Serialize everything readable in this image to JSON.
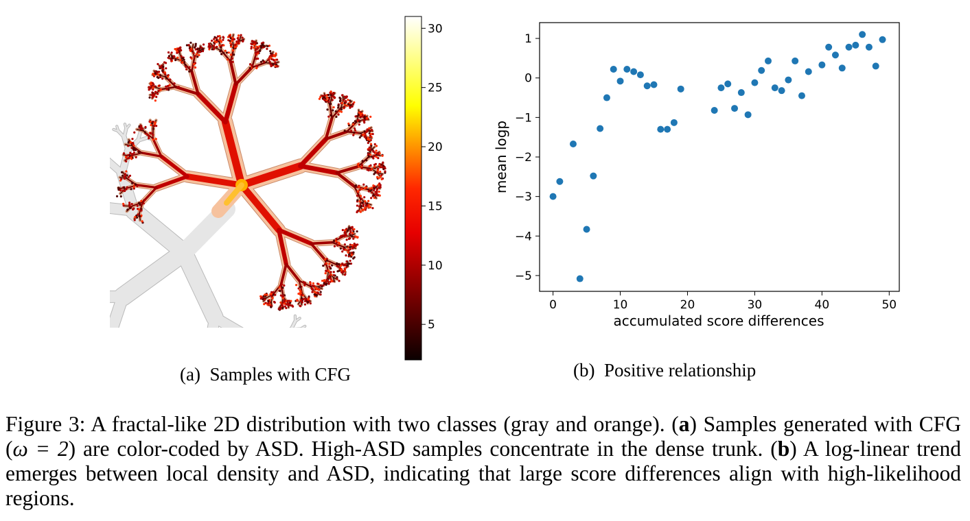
{
  "panel_a": {
    "subcaption_tag": "(a)",
    "subcaption_text": "Samples with CFG",
    "colorbar": {
      "min": 2,
      "max": 31,
      "ticks": [
        5,
        10,
        15,
        20,
        25,
        30
      ],
      "colormap": "hot"
    }
  },
  "panel_b": {
    "subcaption_tag": "(b)",
    "subcaption_text": "Positive relationship"
  },
  "caption": {
    "label": "Figure 3:",
    "text1": " A fractal-like 2D distribution with two classes (gray and orange). (",
    "bold_a": "a",
    "text2": ") Samples generated with CFG (",
    "omega": "ω = 2",
    "text3": ") are color-coded by ASD. High-ASD samples concentrate in the dense trunk. (",
    "bold_b": "b",
    "text4": ") A log-linear trend emerges between local density and ASD, indicating that large score differences align with high-likelihood regions."
  },
  "chart_data": {
    "type": "scatter",
    "xlabel": "accumulated score differences",
    "ylabel": "mean logp",
    "xlim": [
      -2,
      51.5
    ],
    "ylim": [
      -5.4,
      1.4
    ],
    "xticks": [
      0,
      10,
      20,
      30,
      40,
      50
    ],
    "yticks": [
      -5,
      -4,
      -3,
      -2,
      -1,
      0,
      1
    ],
    "marker_color": "#1f77b4",
    "x": [
      0,
      1,
      3,
      4,
      5,
      6,
      7,
      8,
      9,
      10,
      11,
      12,
      13,
      14,
      15,
      16,
      17,
      18,
      19,
      24,
      25,
      26,
      27,
      28,
      29,
      30,
      31,
      32,
      33,
      34,
      35,
      36,
      37,
      38,
      40,
      41,
      42,
      43,
      44,
      45,
      46,
      47,
      48,
      49
    ],
    "y": [
      -3.0,
      -2.62,
      -1.67,
      -5.08,
      -3.83,
      -2.48,
      -1.28,
      -0.5,
      0.22,
      -0.08,
      0.22,
      0.16,
      0.08,
      -0.2,
      -0.17,
      -1.3,
      -1.3,
      -1.13,
      -0.28,
      -0.82,
      -0.25,
      -0.15,
      -0.77,
      -0.37,
      -0.93,
      -0.12,
      0.19,
      0.43,
      -0.25,
      -0.32,
      -0.05,
      0.43,
      -0.45,
      0.16,
      0.33,
      0.78,
      0.58,
      0.25,
      0.78,
      0.83,
      1.1,
      0.78,
      0.3,
      0.97
    ]
  }
}
